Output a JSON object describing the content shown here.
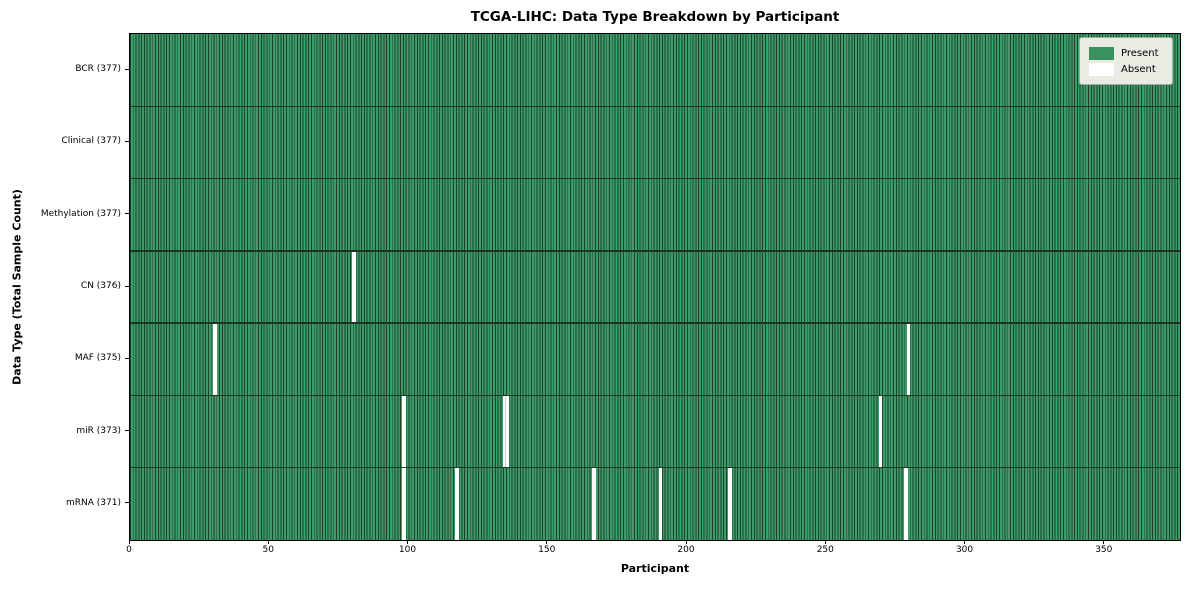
{
  "chart_data": {
    "type": "heatmap",
    "title": "TCGA-LIHC: Data Type Breakdown by Participant",
    "xlabel": "Participant",
    "ylabel": "Data Type (Total Sample Count)",
    "n_participants": 377,
    "xlim": [
      0,
      377
    ],
    "xticks": [
      0,
      50,
      100,
      150,
      200,
      250,
      300,
      350
    ],
    "grid": false,
    "legend_position": "upper right",
    "legend": [
      {
        "label": "Present",
        "color": "#38925e"
      },
      {
        "label": "Absent",
        "color": "#ffffff"
      }
    ],
    "rows": [
      {
        "label": "BCR (377)",
        "name": "BCR",
        "total": 377,
        "missing": []
      },
      {
        "label": "Clinical (377)",
        "name": "Clinical",
        "total": 377,
        "missing": []
      },
      {
        "label": "Methylation (377)",
        "name": "Methylation",
        "total": 377,
        "missing": []
      },
      {
        "label": "CN (376)",
        "name": "CN",
        "total": 376,
        "missing": [
          80
        ]
      },
      {
        "label": "MAF (375)",
        "name": "MAF",
        "total": 375,
        "missing": [
          30,
          279
        ]
      },
      {
        "label": "miR (373)",
        "name": "miR",
        "total": 373,
        "missing": [
          98,
          134,
          135,
          269
        ]
      },
      {
        "label": "mRNA (371)",
        "name": "mRNA",
        "total": 371,
        "missing": [
          98,
          117,
          166,
          190,
          215,
          278
        ]
      }
    ],
    "colors": {
      "cell_fill": "#3e9c6a",
      "cell_edge": "#18452a",
      "row_separator": "#1d3425",
      "absent_fill": "#ffffff",
      "gap_divider": "#c9cdc9",
      "spine": "#000000",
      "legend_bg": "#e9ece3",
      "legend_border": "#a6aba3"
    }
  }
}
